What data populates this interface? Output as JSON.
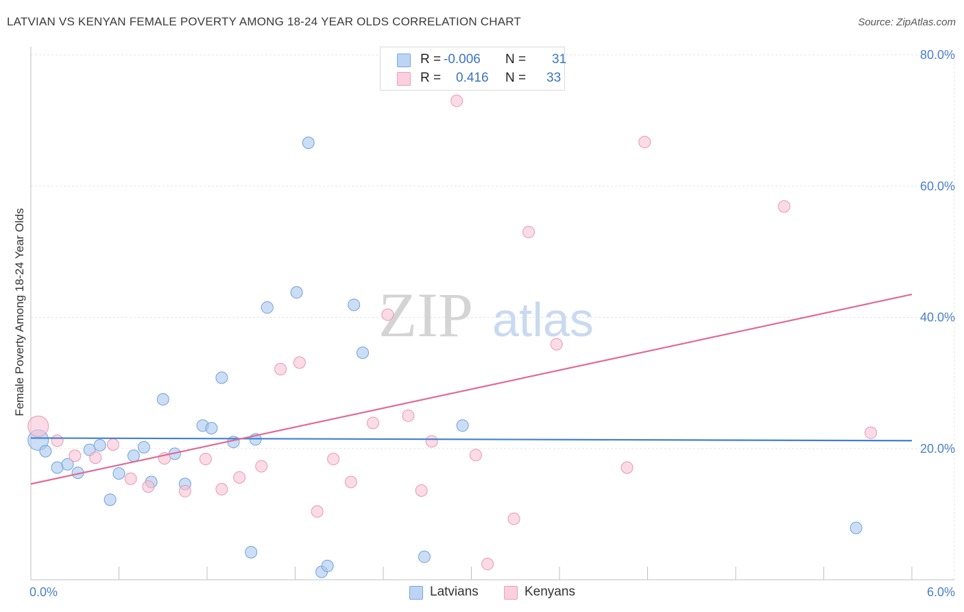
{
  "title": "LATVIAN VS KENYAN FEMALE POVERTY AMONG 18-24 YEAR OLDS CORRELATION CHART",
  "source": "Source: ZipAtlas.com",
  "watermark": {
    "zip": "ZIP",
    "atlas": "atlas"
  },
  "legend": {
    "rows": [
      {
        "r_label": "R =",
        "r_value": "-0.006",
        "n_label": "N =",
        "n_value": "31"
      },
      {
        "r_label": "R =",
        "r_value": "0.416",
        "n_label": "N =",
        "n_value": "33"
      }
    ]
  },
  "chart_data": {
    "type": "scatter",
    "title": "LATVIAN VS KENYAN FEMALE POVERTY AMONG 18-24 YEAR OLDS CORRELATION CHART",
    "xlabel": "",
    "ylabel": "Female Poverty Among 18-24 Year Olds",
    "xlim": [
      0,
      6
    ],
    "ylim": [
      0,
      80
    ],
    "x_tick_labels": [
      "0.0%",
      "6.0%"
    ],
    "y_ticks": [
      20,
      40,
      60,
      80
    ],
    "y_tick_labels": [
      "20.0%",
      "40.0%",
      "60.0%",
      "80.0%"
    ],
    "grid": true,
    "legend_position": "top-center",
    "series": [
      {
        "name": "Latvians",
        "color": "#a9c8f0",
        "stroke": "#6f9fdc",
        "line_color": "#3f7fd3",
        "trend": {
          "x": [
            0,
            6
          ],
          "y": [
            21.6,
            21.2
          ]
        },
        "points": [
          {
            "x": 0.05,
            "y": 21.3,
            "r": 15
          },
          {
            "x": 0.1,
            "y": 19.6
          },
          {
            "x": 0.18,
            "y": 17.1
          },
          {
            "x": 0.25,
            "y": 17.6
          },
          {
            "x": 0.32,
            "y": 16.3
          },
          {
            "x": 0.4,
            "y": 19.8
          },
          {
            "x": 0.47,
            "y": 20.5
          },
          {
            "x": 0.54,
            "y": 12.2
          },
          {
            "x": 0.6,
            "y": 16.2
          },
          {
            "x": 0.7,
            "y": 18.9
          },
          {
            "x": 0.77,
            "y": 20.2
          },
          {
            "x": 0.82,
            "y": 14.9
          },
          {
            "x": 0.9,
            "y": 27.5
          },
          {
            "x": 0.98,
            "y": 19.2
          },
          {
            "x": 1.05,
            "y": 14.6
          },
          {
            "x": 1.17,
            "y": 23.5
          },
          {
            "x": 1.23,
            "y": 23.1
          },
          {
            "x": 1.3,
            "y": 30.8
          },
          {
            "x": 1.38,
            "y": 21.0
          },
          {
            "x": 1.5,
            "y": 4.2
          },
          {
            "x": 1.53,
            "y": 21.4
          },
          {
            "x": 1.61,
            "y": 41.5
          },
          {
            "x": 1.81,
            "y": 43.8
          },
          {
            "x": 1.89,
            "y": 66.6
          },
          {
            "x": 1.98,
            "y": 1.2
          },
          {
            "x": 2.02,
            "y": 2.1
          },
          {
            "x": 2.2,
            "y": 41.9
          },
          {
            "x": 2.26,
            "y": 34.6
          },
          {
            "x": 2.68,
            "y": 3.5
          },
          {
            "x": 2.94,
            "y": 23.5
          },
          {
            "x": 5.62,
            "y": 7.9
          }
        ]
      },
      {
        "name": "Kenyans",
        "color": "#f8c3d4",
        "stroke": "#ec95b1",
        "line_color": "#e06a95",
        "trend": {
          "x": [
            0,
            6
          ],
          "y": [
            14.6,
            43.5
          ]
        },
        "points": [
          {
            "x": 0.05,
            "y": 23.4,
            "r": 15
          },
          {
            "x": 0.18,
            "y": 21.2
          },
          {
            "x": 0.3,
            "y": 18.9
          },
          {
            "x": 0.44,
            "y": 18.6
          },
          {
            "x": 0.56,
            "y": 20.6
          },
          {
            "x": 0.68,
            "y": 15.4
          },
          {
            "x": 0.8,
            "y": 14.2
          },
          {
            "x": 0.91,
            "y": 18.5
          },
          {
            "x": 1.05,
            "y": 13.5
          },
          {
            "x": 1.19,
            "y": 18.4
          },
          {
            "x": 1.3,
            "y": 13.8
          },
          {
            "x": 1.42,
            "y": 15.6
          },
          {
            "x": 1.57,
            "y": 17.3
          },
          {
            "x": 1.7,
            "y": 32.1
          },
          {
            "x": 1.83,
            "y": 33.1
          },
          {
            "x": 1.95,
            "y": 10.4
          },
          {
            "x": 2.06,
            "y": 18.4
          },
          {
            "x": 2.18,
            "y": 14.9
          },
          {
            "x": 2.33,
            "y": 23.9
          },
          {
            "x": 2.43,
            "y": 40.4
          },
          {
            "x": 2.57,
            "y": 25.0
          },
          {
            "x": 2.66,
            "y": 13.6
          },
          {
            "x": 2.73,
            "y": 21.1
          },
          {
            "x": 2.9,
            "y": 73.0
          },
          {
            "x": 3.03,
            "y": 19.0
          },
          {
            "x": 3.11,
            "y": 2.4
          },
          {
            "x": 3.29,
            "y": 9.3
          },
          {
            "x": 3.39,
            "y": 53.0
          },
          {
            "x": 3.58,
            "y": 35.9
          },
          {
            "x": 4.06,
            "y": 17.1
          },
          {
            "x": 4.18,
            "y": 66.7
          },
          {
            "x": 5.13,
            "y": 56.9
          },
          {
            "x": 5.72,
            "y": 22.4
          }
        ]
      }
    ]
  }
}
